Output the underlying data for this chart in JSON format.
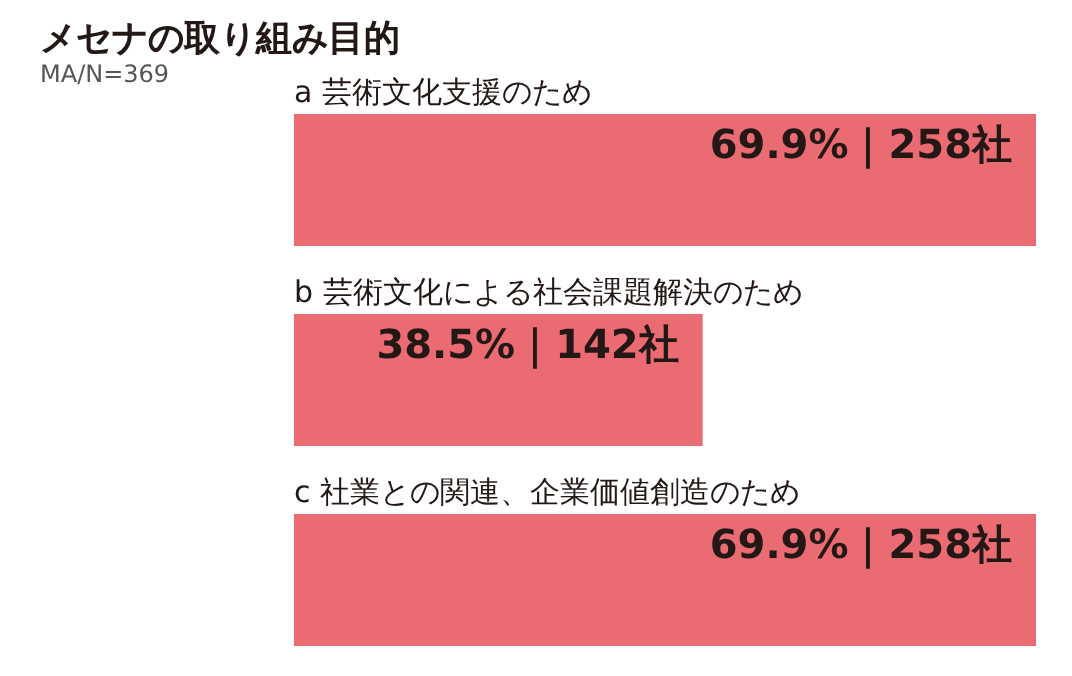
{
  "chart_data": {
    "type": "bar",
    "orientation": "horizontal",
    "title": "メセナの取り組み目的",
    "subtitle": "MA/N=369",
    "categories": [
      "a 芸術文化支援のため",
      "b 芸術文化による社会課題解決のため",
      "c 社業との関連、企業価値創造のため"
    ],
    "values": [
      69.9,
      38.5,
      69.9
    ],
    "color": "#eb6b73",
    "value_labels": [
      "69.9%｜258社",
      "38.5%｜142社",
      "69.9%｜258社"
    ]
  }
}
